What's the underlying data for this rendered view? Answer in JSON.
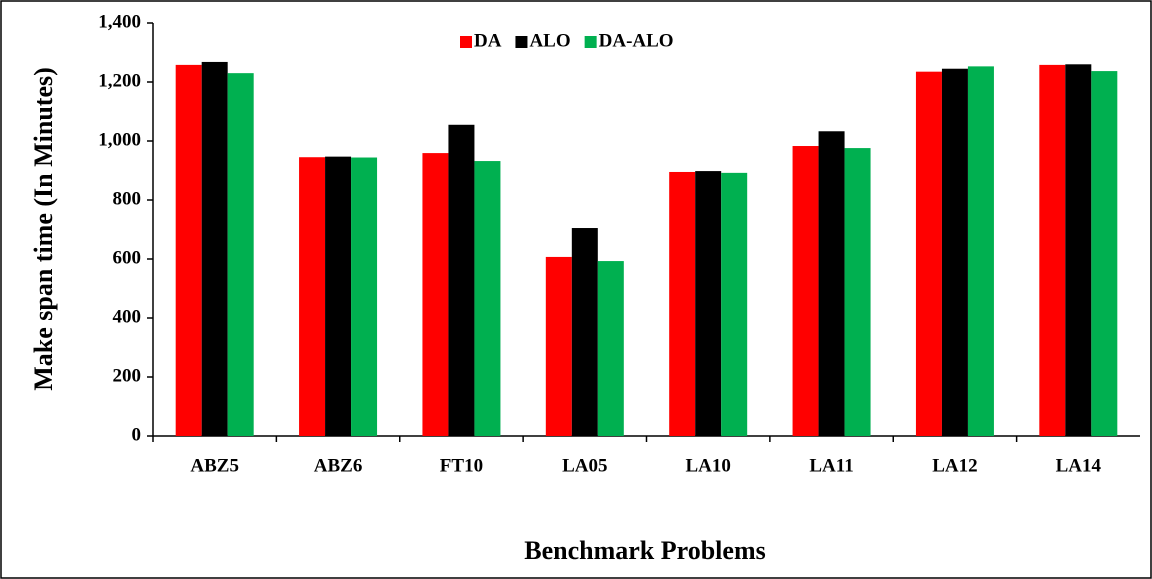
{
  "chart_data": {
    "type": "bar",
    "x_label": "Benchmark Problems",
    "y_label": "Make span time (In Minutes)",
    "categories": [
      "ABZ5",
      "ABZ6",
      "FT10",
      "LA05",
      "LA10",
      "LA11",
      "LA12",
      "LA14"
    ],
    "series": [
      {
        "name": "DA",
        "color": "#ff0000",
        "values": [
          1258,
          945,
          959,
          607,
          895,
          983,
          1235,
          1258
        ]
      },
      {
        "name": "ALO",
        "color": "#000000",
        "values": [
          1268,
          947,
          1055,
          705,
          898,
          1033,
          1245,
          1260
        ]
      },
      {
        "name": "DA-ALO",
        "color": "#00b050",
        "values": [
          1230,
          944,
          932,
          593,
          892,
          976,
          1253,
          1237
        ]
      }
    ],
    "ylim": [
      0,
      1400
    ],
    "yticks": [
      0,
      200,
      400,
      600,
      800,
      {
        "value": 1000,
        "label": "1,000"
      },
      {
        "value": 1200,
        "label": "1,200"
      },
      {
        "value": 1400,
        "label": "1,400"
      }
    ],
    "grid": false,
    "legend": "top"
  }
}
